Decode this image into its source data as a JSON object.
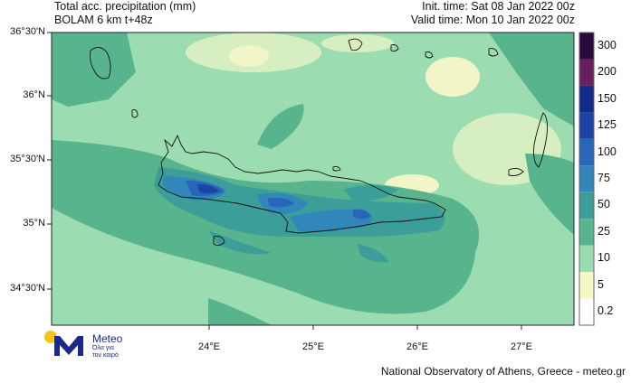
{
  "header": {
    "title_line1": "Total acc. precipitation (mm)",
    "title_line2": "BOLAM 6 km t+48z",
    "init_time": "Init. time: Sat 08 Jan 2022 00z",
    "valid_time": "Valid time: Mon 10 Jan 2022 00z"
  },
  "axes": {
    "lat_ticks": [
      "36°30'N",
      "36°N",
      "35°30'N",
      "35°N",
      "34°30'N"
    ],
    "lon_ticks": [
      "24°E",
      "25°E",
      "26°E",
      "27°E"
    ]
  },
  "colorbar": {
    "labels": [
      "300",
      "200",
      "150",
      "125",
      "100",
      "75",
      "50",
      "25",
      "10",
      "5",
      "0.2"
    ],
    "colors": [
      "#2a0a3e",
      "#6a1f5e",
      "#122a8a",
      "#1c44a4",
      "#2766b8",
      "#3186ba",
      "#3c9e98",
      "#58b48c",
      "#9bdcb0",
      "#f4f6c4",
      "#ffffff"
    ]
  },
  "footer": {
    "credit": "National Observatory of Athens, Greece - meteo.gr"
  },
  "logo": {
    "name": "Meteo",
    "tagline_line1": "Όλα για",
    "tagline_line2": "τον καιρό"
  }
}
